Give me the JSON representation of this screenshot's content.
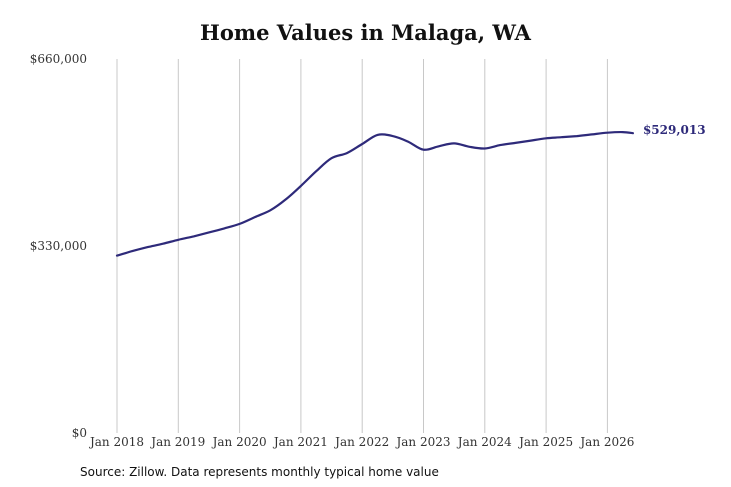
{
  "chart_data": {
    "type": "line",
    "title": "Home Values in Malaga, WA",
    "source": "Source: Zillow. Data represents monthly typical home value",
    "xlabel": "",
    "ylabel": "",
    "ylim": [
      0,
      660000
    ],
    "yticks": [
      {
        "value": 0,
        "label": "$0"
      },
      {
        "value": 330000,
        "label": "$330,000"
      },
      {
        "value": 660000,
        "label": "$660,000"
      }
    ],
    "xticks": [
      {
        "value": "2018-01",
        "label": "Jan 2018"
      },
      {
        "value": "2019-01",
        "label": "Jan 2019"
      },
      {
        "value": "2020-01",
        "label": "Jan 2020"
      },
      {
        "value": "2021-01",
        "label": "Jan 2021"
      },
      {
        "value": "2022-01",
        "label": "Jan 2022"
      },
      {
        "value": "2023-01",
        "label": "Jan 2023"
      },
      {
        "value": "2024-01",
        "label": "Jan 2024"
      },
      {
        "value": "2025-01",
        "label": "Jan 2025"
      },
      {
        "value": "2026-01",
        "label": "Jan 2026"
      }
    ],
    "grid": "vertical",
    "line_color": "#2e2a7a",
    "end_label": "$529,013",
    "series": [
      {
        "x": [
          "2018-01",
          "2018-04",
          "2018-07",
          "2018-10",
          "2019-01",
          "2019-04",
          "2019-07",
          "2019-10",
          "2020-01",
          "2020-04",
          "2020-07",
          "2020-10",
          "2021-01",
          "2021-04",
          "2021-07",
          "2021-10",
          "2022-01",
          "2022-04",
          "2022-07",
          "2022-10",
          "2023-01",
          "2023-04",
          "2023-07",
          "2023-10",
          "2024-01",
          "2024-04",
          "2024-07",
          "2024-10",
          "2025-01",
          "2025-04",
          "2025-07",
          "2025-10",
          "2026-01",
          "2026-04",
          "2026-06"
        ],
        "values": [
          313000,
          321000,
          328000,
          334000,
          341000,
          347000,
          354000,
          361000,
          369000,
          381000,
          393000,
          412000,
          436000,
          462000,
          485000,
          494000,
          510000,
          526000,
          524000,
          514000,
          500000,
          506000,
          511000,
          505000,
          502000,
          508000,
          512000,
          516000,
          520000,
          522000,
          524000,
          527000,
          530000,
          531000,
          529013
        ]
      }
    ]
  }
}
